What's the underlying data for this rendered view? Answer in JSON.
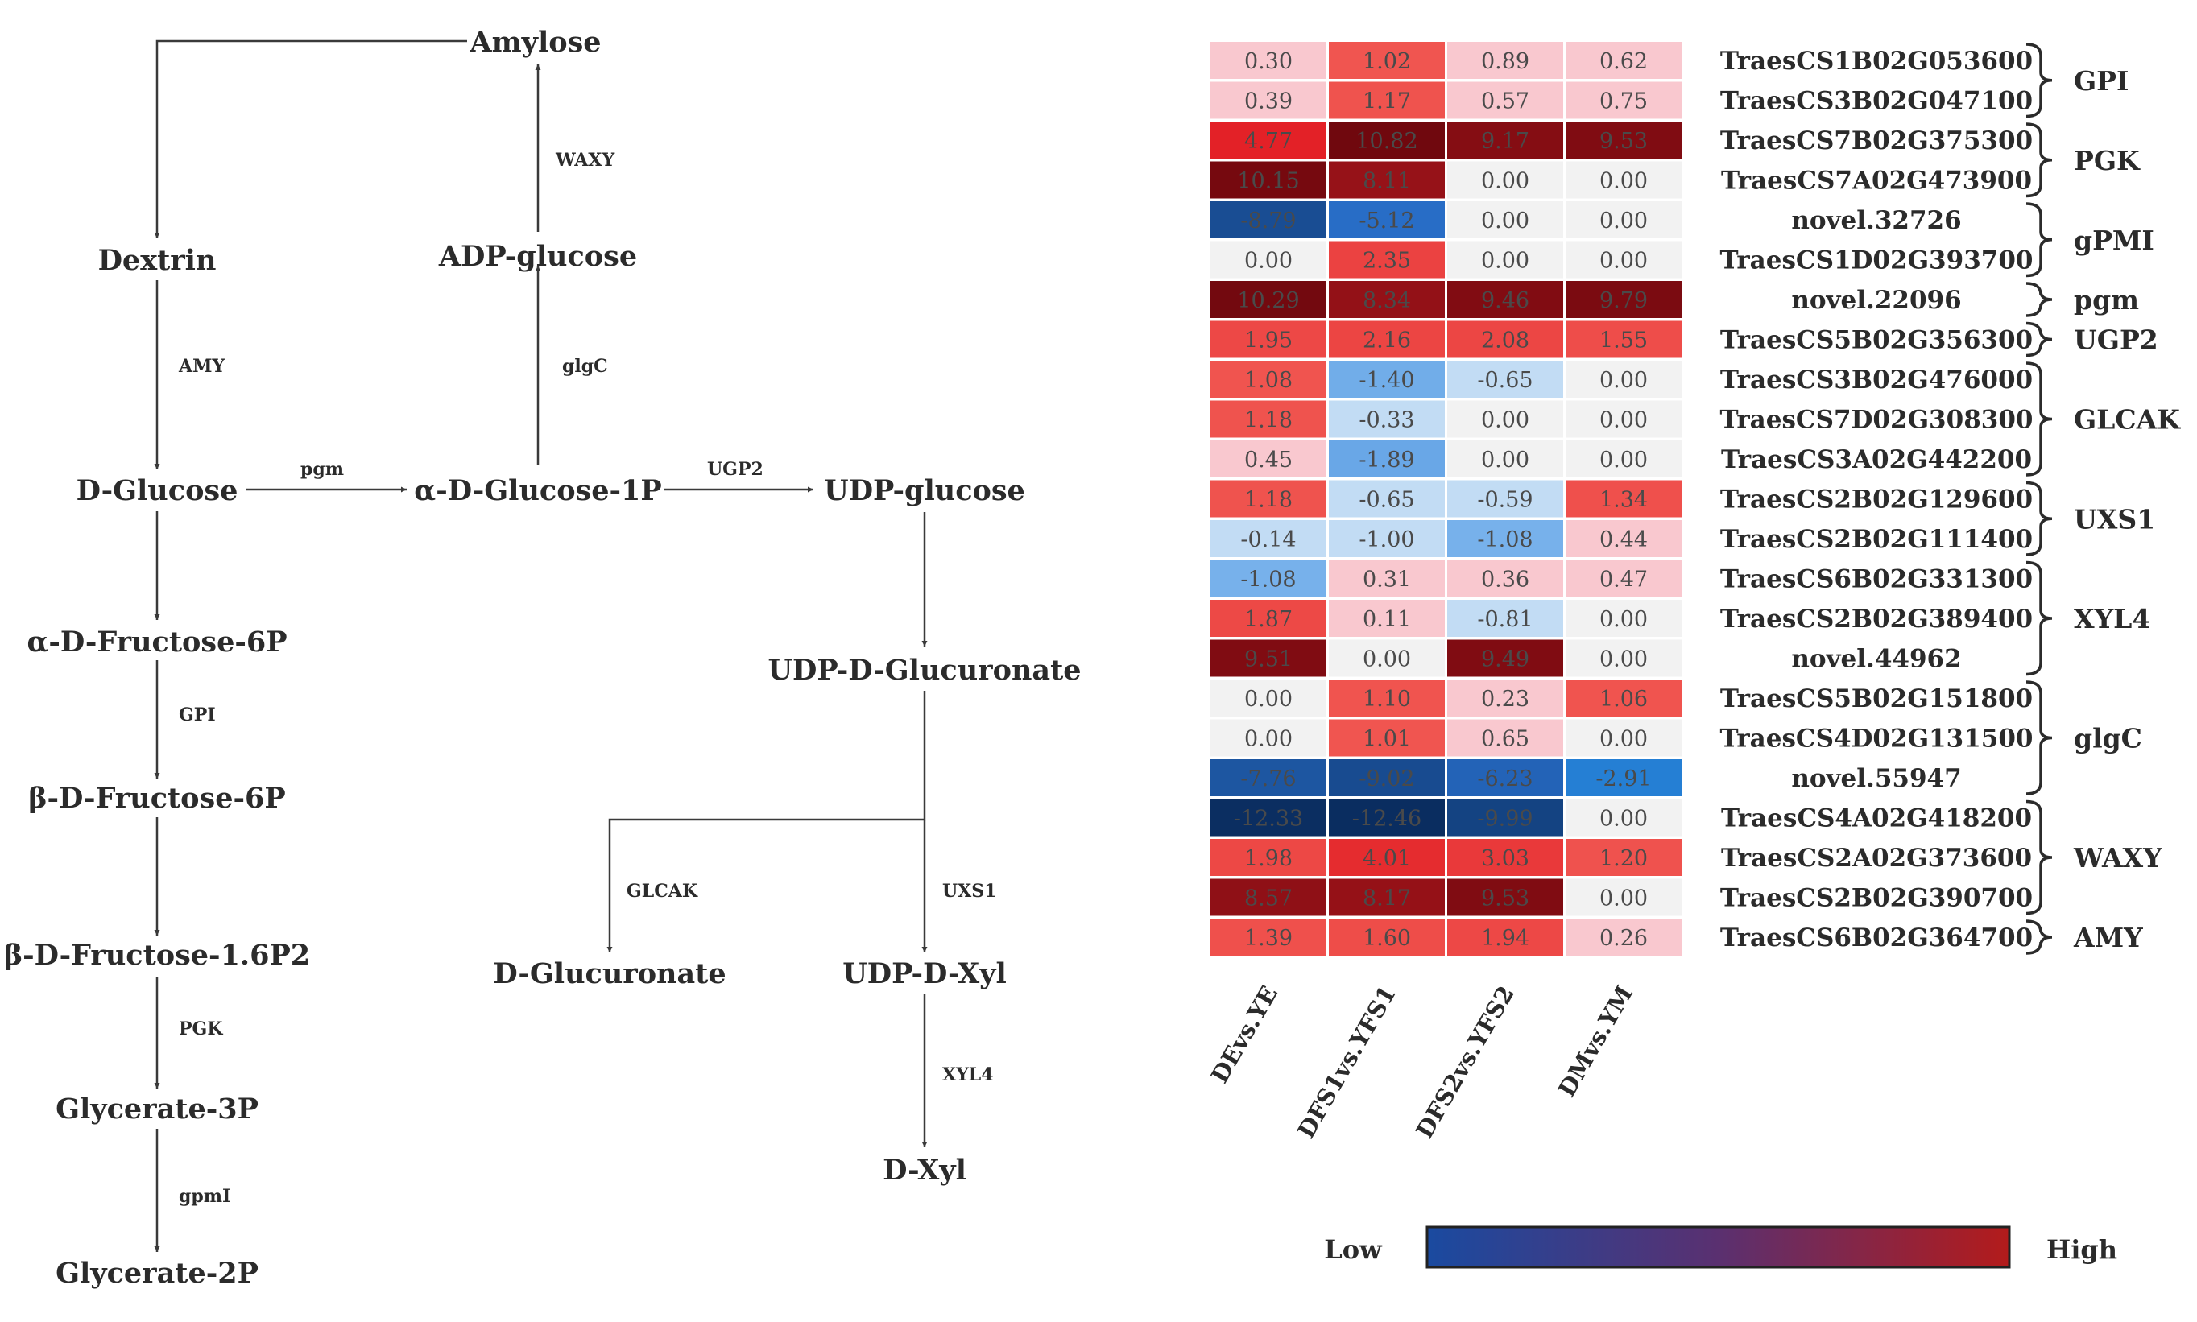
{
  "pathway": {
    "nodes": {
      "amylose": "Amylose",
      "dextrin": "Dextrin",
      "adp_glucose": "ADP-glucose",
      "d_glucose": "D-Glucose",
      "a_d_glucose_1p": "α-D-Glucose-1P",
      "udp_glucose": "UDP-glucose",
      "a_d_fructose_6p": "α-D-Fructose-6P",
      "udp_d_glucuronate": "UDP-D-Glucuronate",
      "b_d_fructose_6p": "β-D-Fructose-6P",
      "b_d_fructose_16p2": "β-D-Fructose-1.6P2",
      "d_glucuronate": "D-Glucuronate",
      "udp_d_xyl": "UDP-D-Xyl",
      "glycerate_3p": "Glycerate-3P",
      "d_xyl": "D-Xyl",
      "glycerate_2p": "Glycerate-2P"
    },
    "enzymes": {
      "waxy": "WAXY",
      "amy": "AMY",
      "glgc": "glgC",
      "pgm": "pgm",
      "ugp2": "UGP2",
      "gpi": "GPI",
      "glcak": "GLCAK",
      "uxs1": "UXS1",
      "pgk": "PGK",
      "xyl4": "XYL4",
      "gpmi": "gpmI"
    }
  },
  "heatmap": {
    "columns": [
      "DEvs.YE",
      "DFS1vs.YFS1",
      "DFS2vs.YFS2",
      "DMvs.YM"
    ],
    "rows": [
      {
        "gene": "TraesCS1B02G053600",
        "values": [
          0.3,
          1.02,
          0.89,
          0.62
        ],
        "labels": [
          "0.30",
          "1.02",
          "0.89",
          "0.62"
        ]
      },
      {
        "gene": "TraesCS3B02G047100",
        "values": [
          0.39,
          1.17,
          0.57,
          0.75
        ],
        "labels": [
          "0.39",
          "1.17",
          "0.57",
          "0.75"
        ]
      },
      {
        "gene": "TraesCS7B02G375300",
        "values": [
          4.77,
          10.82,
          9.17,
          9.53
        ],
        "labels": [
          "4.77",
          "10.82",
          "9.17",
          "9.53"
        ]
      },
      {
        "gene": "TraesCS7A02G473900",
        "values": [
          10.15,
          8.11,
          0.0,
          0.0
        ],
        "labels": [
          "10.15",
          "8.11",
          "0.00",
          "0.00"
        ]
      },
      {
        "gene": "novel.32726",
        "values": [
          -8.79,
          -5.12,
          0.0,
          0.0
        ],
        "labels": [
          "-8.79",
          "-5.12",
          "0.00",
          "0.00"
        ]
      },
      {
        "gene": "TraesCS1D02G393700",
        "values": [
          0.0,
          2.35,
          0.0,
          0.0
        ],
        "labels": [
          "0.00",
          "2.35",
          "0.00",
          "0.00"
        ]
      },
      {
        "gene": "novel.22096",
        "values": [
          10.29,
          8.34,
          9.46,
          9.79
        ],
        "labels": [
          "10.29",
          "8.34",
          "9.46",
          "9.79"
        ]
      },
      {
        "gene": "TraesCS5B02G356300",
        "values": [
          1.95,
          2.16,
          2.08,
          1.55
        ],
        "labels": [
          "1.95",
          "2.16",
          "2.08",
          "1.55"
        ]
      },
      {
        "gene": "TraesCS3B02G476000",
        "values": [
          1.08,
          -1.4,
          -0.65,
          0.0
        ],
        "labels": [
          "1.08",
          "-1.40",
          "-0.65",
          "0.00"
        ]
      },
      {
        "gene": "TraesCS7D02G308300",
        "values": [
          1.18,
          -0.33,
          0.0,
          0.0
        ],
        "labels": [
          "1.18",
          "-0.33",
          "0.00",
          "0.00"
        ]
      },
      {
        "gene": "TraesCS3A02G442200",
        "values": [
          0.45,
          -1.89,
          0.0,
          0.0
        ],
        "labels": [
          "0.45",
          "-1.89",
          "0.00",
          "0.00"
        ]
      },
      {
        "gene": "TraesCS2B02G129600",
        "values": [
          1.18,
          -0.65,
          -0.59,
          1.34
        ],
        "labels": [
          "1.18",
          "-0.65",
          "-0.59",
          "1.34"
        ]
      },
      {
        "gene": "TraesCS2B02G111400",
        "values": [
          -0.14,
          -1.0,
          -1.08,
          0.44
        ],
        "labels": [
          "-0.14",
          "-1.00",
          "-1.08",
          "0.44"
        ]
      },
      {
        "gene": "TraesCS6B02G331300",
        "values": [
          -1.08,
          0.31,
          0.36,
          0.47
        ],
        "labels": [
          "-1.08",
          "0.31",
          "0.36",
          "0.47"
        ]
      },
      {
        "gene": "TraesCS2B02G389400",
        "values": [
          1.87,
          0.11,
          -0.81,
          0.0
        ],
        "labels": [
          "1.87",
          "0.11",
          "-0.81",
          "0.00"
        ]
      },
      {
        "gene": "novel.44962",
        "values": [
          9.51,
          0.0,
          9.49,
          0.0
        ],
        "labels": [
          "9.51",
          "0.00",
          "9.49",
          "0.00"
        ]
      },
      {
        "gene": "TraesCS5B02G151800",
        "values": [
          0.0,
          1.1,
          0.23,
          1.06
        ],
        "labels": [
          "0.00",
          "1.10",
          "0.23",
          "1.06"
        ]
      },
      {
        "gene": "TraesCS4D02G131500",
        "values": [
          0.0,
          1.01,
          0.65,
          0.0
        ],
        "labels": [
          "0.00",
          "1.01",
          "0.65",
          "0.00"
        ]
      },
      {
        "gene": "novel.55947",
        "values": [
          -7.76,
          -9.02,
          -6.23,
          -2.91
        ],
        "labels": [
          "-7.76",
          "-9.02",
          "-6.23",
          "-2.91"
        ]
      },
      {
        "gene": "TraesCS4A02G418200",
        "values": [
          -12.33,
          -12.46,
          -9.99,
          0.0
        ],
        "labels": [
          "-12.33",
          "-12.46",
          "-9.99",
          "0.00"
        ]
      },
      {
        "gene": "TraesCS2A02G373600",
        "values": [
          1.98,
          4.01,
          3.03,
          1.2
        ],
        "labels": [
          "1.98",
          "4.01",
          "3.03",
          "1.20"
        ]
      },
      {
        "gene": "TraesCS2B02G390700",
        "values": [
          8.57,
          8.17,
          9.53,
          0.0
        ],
        "labels": [
          "8.57",
          "8.17",
          "9.53",
          "0.00"
        ]
      },
      {
        "gene": "TraesCS6B02G364700",
        "values": [
          1.39,
          1.6,
          1.94,
          0.26
        ],
        "labels": [
          "1.39",
          "1.60",
          "1.94",
          "0.26"
        ]
      }
    ],
    "groups": [
      {
        "name": "GPI",
        "from": 0,
        "to": 1
      },
      {
        "name": "PGK",
        "from": 2,
        "to": 3
      },
      {
        "name": "gPMI",
        "from": 4,
        "to": 5
      },
      {
        "name": "pgm",
        "from": 6,
        "to": 6
      },
      {
        "name": "UGP2",
        "from": 7,
        "to": 7
      },
      {
        "name": "GLCAK",
        "from": 8,
        "to": 10
      },
      {
        "name": "UXS1",
        "from": 11,
        "to": 12
      },
      {
        "name": "XYL4",
        "from": 13,
        "to": 15
      },
      {
        "name": "glgC",
        "from": 16,
        "to": 18
      },
      {
        "name": "WAXY",
        "from": 19,
        "to": 21
      },
      {
        "name": "AMY",
        "from": 22,
        "to": 22
      }
    ],
    "legend": {
      "low": "Low",
      "high": "High",
      "low_color": "#1a4aa0",
      "high_color": "#b31b1b"
    }
  }
}
